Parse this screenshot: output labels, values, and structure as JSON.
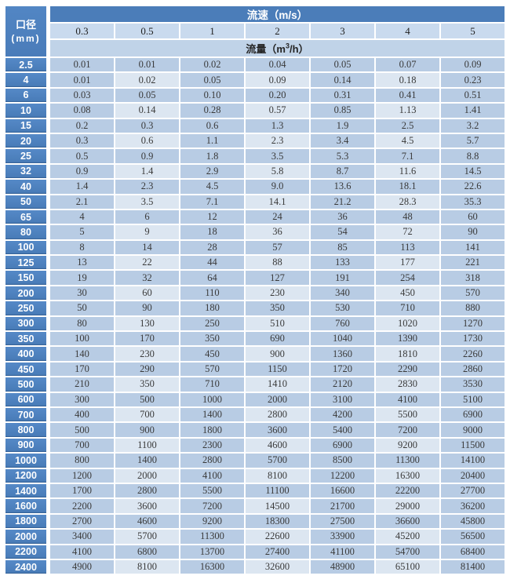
{
  "table": {
    "corner_line1": "口径",
    "corner_line2": "(mm)",
    "velocity_band": "流速（m/s）",
    "flow_band_prefix": "流量（m",
    "flow_band_sup": "3",
    "flow_band_suffix": "/h）",
    "velocities": [
      "0.3",
      "0.5",
      "1",
      "2",
      "3",
      "4",
      "5"
    ],
    "rows": [
      {
        "d": "2.5",
        "v": [
          "0.01",
          "0.01",
          "0.02",
          "0.04",
          "0.05",
          "0.07",
          "0.09"
        ]
      },
      {
        "d": "4",
        "v": [
          "0.01",
          "0.02",
          "0.05",
          "0.09",
          "0.14",
          "0.18",
          "0.23"
        ]
      },
      {
        "d": "6",
        "v": [
          "0.03",
          "0.05",
          "0.10",
          "0.20",
          "0.31",
          "0.41",
          "0.51"
        ]
      },
      {
        "d": "10",
        "v": [
          "0.08",
          "0.14",
          "0.28",
          "0.57",
          "0.85",
          "1.13",
          "1.41"
        ]
      },
      {
        "d": "15",
        "v": [
          "0.2",
          "0.3",
          "0.6",
          "1.3",
          "1.9",
          "2.5",
          "3.2"
        ]
      },
      {
        "d": "20",
        "v": [
          "0.3",
          "0.6",
          "1.1",
          "2.3",
          "3.4",
          "4.5",
          "5.7"
        ]
      },
      {
        "d": "25",
        "v": [
          "0.5",
          "0.9",
          "1.8",
          "3.5",
          "5.3",
          "7.1",
          "8.8"
        ]
      },
      {
        "d": "32",
        "v": [
          "0.9",
          "1.4",
          "2.9",
          "5.8",
          "8.7",
          "11.6",
          "14.5"
        ]
      },
      {
        "d": "40",
        "v": [
          "1.4",
          "2.3",
          "4.5",
          "9.0",
          "13.6",
          "18.1",
          "22.6"
        ]
      },
      {
        "d": "50",
        "v": [
          "2.1",
          "3.5",
          "7.1",
          "14.1",
          "21.2",
          "28.3",
          "35.3"
        ]
      },
      {
        "d": "65",
        "v": [
          "4",
          "6",
          "12",
          "24",
          "36",
          "48",
          "60"
        ]
      },
      {
        "d": "80",
        "v": [
          "5",
          "9",
          "18",
          "36",
          "54",
          "72",
          "90"
        ]
      },
      {
        "d": "100",
        "v": [
          "8",
          "14",
          "28",
          "57",
          "85",
          "113",
          "141"
        ]
      },
      {
        "d": "125",
        "v": [
          "13",
          "22",
          "44",
          "88",
          "133",
          "177",
          "221"
        ]
      },
      {
        "d": "150",
        "v": [
          "19",
          "32",
          "64",
          "127",
          "191",
          "254",
          "318"
        ]
      },
      {
        "d": "200",
        "v": [
          "30",
          "60",
          "110",
          "230",
          "340",
          "450",
          "570"
        ]
      },
      {
        "d": "250",
        "v": [
          "50",
          "90",
          "180",
          "350",
          "530",
          "710",
          "880"
        ]
      },
      {
        "d": "300",
        "v": [
          "80",
          "130",
          "250",
          "510",
          "760",
          "1020",
          "1270"
        ]
      },
      {
        "d": "350",
        "v": [
          "100",
          "170",
          "350",
          "690",
          "1040",
          "1390",
          "1730"
        ]
      },
      {
        "d": "400",
        "v": [
          "140",
          "230",
          "450",
          "900",
          "1360",
          "1810",
          "2260"
        ]
      },
      {
        "d": "450",
        "v": [
          "170",
          "290",
          "570",
          "1150",
          "1720",
          "2290",
          "2860"
        ]
      },
      {
        "d": "500",
        "v": [
          "210",
          "350",
          "710",
          "1410",
          "2120",
          "2830",
          "3530"
        ]
      },
      {
        "d": "600",
        "v": [
          "300",
          "500",
          "1000",
          "2000",
          "3100",
          "4100",
          "5100"
        ]
      },
      {
        "d": "700",
        "v": [
          "400",
          "700",
          "1400",
          "2800",
          "4200",
          "5500",
          "6900"
        ]
      },
      {
        "d": "800",
        "v": [
          "500",
          "900",
          "1800",
          "3600",
          "5400",
          "7200",
          "9000"
        ]
      },
      {
        "d": "900",
        "v": [
          "700",
          "1100",
          "2300",
          "4600",
          "6900",
          "9200",
          "11500"
        ]
      },
      {
        "d": "1000",
        "v": [
          "800",
          "1400",
          "2800",
          "5700",
          "8500",
          "11300",
          "14100"
        ]
      },
      {
        "d": "1200",
        "v": [
          "1200",
          "2000",
          "4100",
          "8100",
          "12200",
          "16300",
          "20400"
        ]
      },
      {
        "d": "1400",
        "v": [
          "1700",
          "2800",
          "5500",
          "11100",
          "16600",
          "22200",
          "27700"
        ]
      },
      {
        "d": "1600",
        "v": [
          "2200",
          "3600",
          "7200",
          "14500",
          "21700",
          "29000",
          "36200"
        ]
      },
      {
        "d": "1800",
        "v": [
          "2700",
          "4600",
          "9200",
          "18300",
          "27500",
          "36600",
          "45800"
        ]
      },
      {
        "d": "2000",
        "v": [
          "3400",
          "5700",
          "11300",
          "22600",
          "33900",
          "45200",
          "56500"
        ]
      },
      {
        "d": "2200",
        "v": [
          "4100",
          "6800",
          "13700",
          "27400",
          "41100",
          "54700",
          "68400"
        ]
      },
      {
        "d": "2400",
        "v": [
          "4900",
          "8100",
          "16300",
          "32600",
          "48900",
          "65100",
          "81400"
        ]
      }
    ]
  },
  "colors": {
    "header_blue": "#4b7db9",
    "row_label_blue": "#4e82c0",
    "velocity_row_bg": "#c9daee",
    "flow_band_bg": "#c0d3e8",
    "cell_medium": "#b8cce4",
    "cell_light": "#dce6f1",
    "text_dark": "#3a3a3a",
    "text_white": "#ffffff"
  }
}
